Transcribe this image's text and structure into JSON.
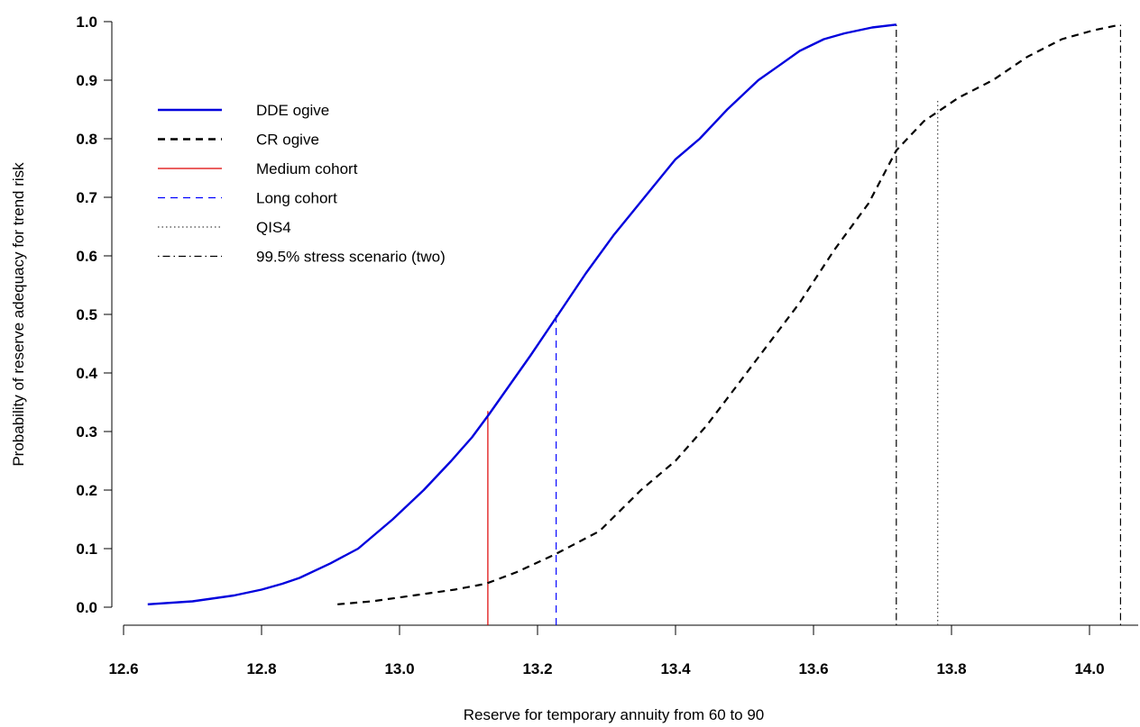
{
  "chart_data": {
    "type": "line",
    "xlabel": "Reserve for temporary annuity from 60 to 90",
    "ylabel": "Probability of reserve adequacy for trend risk",
    "xlim": [
      12.6,
      14.08
    ],
    "ylim": [
      0.0,
      1.0
    ],
    "x_ticks": [
      "12.6",
      "12.8",
      "13.0",
      "13.2",
      "13.4",
      "13.6",
      "13.8",
      "14.0"
    ],
    "y_ticks": [
      "0.0",
      "0.1",
      "0.2",
      "0.3",
      "0.4",
      "0.5",
      "0.6",
      "0.7",
      "0.8",
      "0.9",
      "1.0"
    ],
    "grid": false,
    "legend_position": "top-left",
    "series": [
      {
        "name": "DDE ogive",
        "color": "#0000dd",
        "style": "solid",
        "x": [
          12.635,
          12.7,
          12.76,
          12.8,
          12.83,
          12.855,
          12.9,
          12.94,
          12.99,
          13.035,
          13.075,
          13.105,
          13.13,
          13.16,
          13.19,
          13.23,
          13.27,
          13.31,
          13.355,
          13.4,
          13.435,
          13.475,
          13.52,
          13.55,
          13.58,
          13.615,
          13.645,
          13.685,
          13.72
        ],
        "y": [
          0.005,
          0.01,
          0.02,
          0.03,
          0.04,
          0.05,
          0.075,
          0.1,
          0.15,
          0.2,
          0.25,
          0.29,
          0.33,
          0.38,
          0.43,
          0.5,
          0.57,
          0.635,
          0.7,
          0.765,
          0.8,
          0.85,
          0.9,
          0.925,
          0.95,
          0.97,
          0.98,
          0.99,
          0.995
        ]
      },
      {
        "name": "CR ogive",
        "color": "#000000",
        "style": "dashed",
        "x": [
          12.91,
          12.96,
          13.02,
          13.08,
          13.125,
          13.17,
          13.225,
          13.29,
          13.35,
          13.4,
          13.445,
          13.49,
          13.535,
          13.58,
          13.63,
          13.68,
          13.72,
          13.76,
          13.81,
          13.86,
          13.91,
          13.96,
          14.005,
          14.045
        ],
        "y": [
          0.005,
          0.01,
          0.02,
          0.03,
          0.04,
          0.06,
          0.09,
          0.13,
          0.2,
          0.25,
          0.31,
          0.38,
          0.45,
          0.52,
          0.61,
          0.69,
          0.78,
          0.83,
          0.87,
          0.9,
          0.94,
          0.97,
          0.985,
          0.995
        ]
      }
    ],
    "vertical_lines": [
      {
        "name": "Medium cohort",
        "color": "#dd0000",
        "style": "solid",
        "x": 13.128,
        "y_top": 0.335
      },
      {
        "name": "Long cohort",
        "color": "#0000ff",
        "style": "dashed",
        "x": 13.227,
        "y_top": 0.505
      },
      {
        "name": "QIS4",
        "color": "#444444",
        "style": "dotted",
        "x": 13.78,
        "y_top": 0.865
      },
      {
        "name": "99.5% stress scenario (two)",
        "color": "#000000",
        "style": "dotdash",
        "x": 13.72,
        "y_top": 1.0
      },
      {
        "name": "99.5% stress scenario (two)",
        "color": "#000000",
        "style": "dotdash",
        "x": 14.045,
        "y_top": 1.0
      }
    ],
    "legend": [
      {
        "label": "DDE ogive",
        "color": "#0000dd",
        "style": "solid"
      },
      {
        "label": "CR ogive",
        "color": "#000000",
        "style": "dashed"
      },
      {
        "label": "Medium cohort",
        "color": "#dd0000",
        "style": "solid"
      },
      {
        "label": "Long cohort",
        "color": "#0000ff",
        "style": "dashed"
      },
      {
        "label": "QIS4",
        "color": "#444444",
        "style": "dotted"
      },
      {
        "label": "99.5% stress scenario (two)",
        "color": "#000000",
        "style": "dotdash"
      }
    ]
  }
}
